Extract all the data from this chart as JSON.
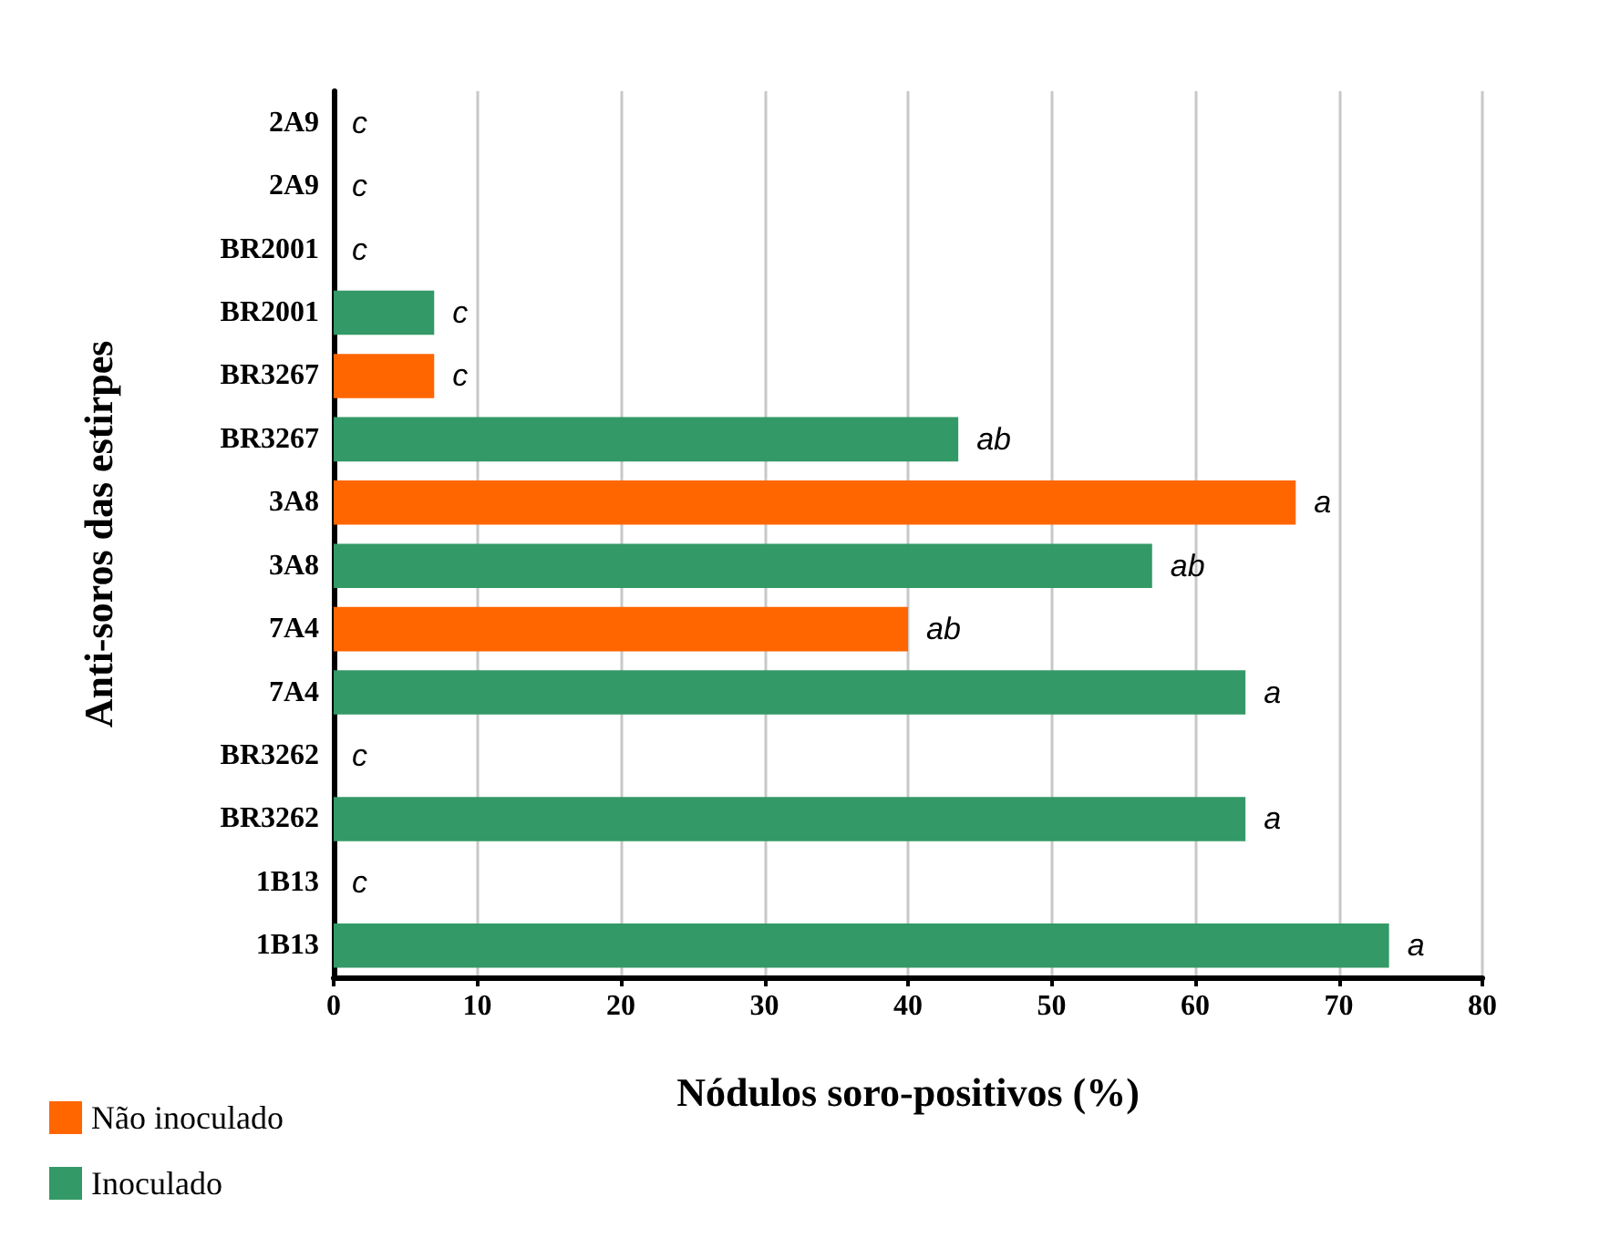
{
  "chart_data": {
    "type": "bar",
    "orientation": "horizontal",
    "xlabel": "Nódulos soro-positivos (%)",
    "ylabel": "Anti-soros das estirpes",
    "categories": [
      "2A9",
      "2A9",
      "BR2001",
      "BR2001",
      "BR3267",
      "BR3267",
      "3A8",
      "3A8",
      "7A4",
      "7A4",
      "BR3262",
      "BR3262",
      "1B13",
      "1B13"
    ],
    "series": [
      {
        "name": "Não inoculado",
        "color": "#ff6600",
        "values": [
          0,
          null,
          0,
          null,
          7,
          null,
          67,
          null,
          40,
          null,
          0,
          null,
          0,
          null
        ],
        "value_labels": [
          "c",
          null,
          "c",
          null,
          "c",
          null,
          "a",
          null,
          "ab",
          null,
          "c",
          null,
          "c",
          null
        ]
      },
      {
        "name": "Inoculado",
        "color": "#339966",
        "values": [
          null,
          0,
          null,
          7,
          null,
          43.5,
          null,
          57,
          null,
          63.5,
          null,
          63.5,
          null,
          73.5
        ],
        "value_labels": [
          null,
          "c",
          null,
          "c",
          null,
          "ab",
          null,
          "ab",
          null,
          "a",
          null,
          "a",
          null,
          "a"
        ]
      }
    ],
    "xlim": [
      0,
      80
    ],
    "xticks": [
      0,
      10,
      20,
      30,
      40,
      50,
      60,
      70,
      80
    ],
    "grid": "x",
    "legend": "bottom left"
  }
}
